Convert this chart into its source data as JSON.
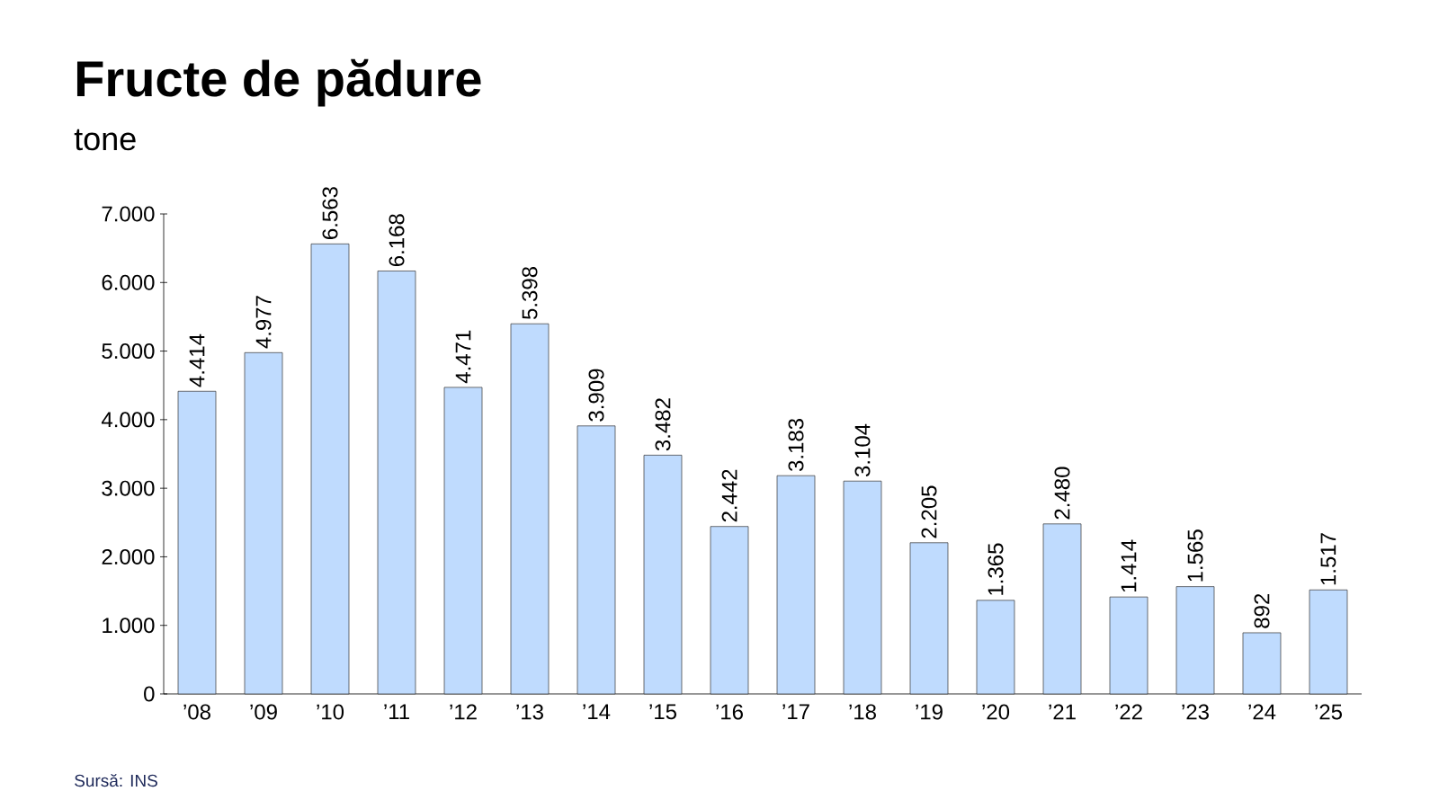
{
  "chart_data": {
    "type": "bar",
    "title": "Fructe de pădure",
    "subtitle": "tone",
    "annotations": [
      "Sursă: INS"
    ],
    "categories": [
      "’08",
      "’09",
      "’10",
      "’11",
      "’12",
      "’13",
      "’14",
      "’15",
      "’16",
      "’17",
      "’18",
      "’19",
      "’20",
      "’21",
      "’22",
      "’23",
      "’24",
      "’25"
    ],
    "values": [
      4414,
      4977,
      6563,
      6168,
      4471,
      5398,
      3909,
      3482,
      2442,
      3183,
      3104,
      2205,
      1365,
      2480,
      1414,
      1565,
      892,
      1517
    ],
    "value_labels": [
      "4.414",
      "4.977",
      "6.563",
      "6.168",
      "4.471",
      "5.398",
      "3.909",
      "3.482",
      "2.442",
      "3.183",
      "3.104",
      "2.205",
      "1.365",
      "2.480",
      "1.414",
      "1.565",
      "892",
      "1.517"
    ],
    "color": "#bfdbfe",
    "ylim": [
      0,
      7000
    ],
    "yticks": [
      {
        "value": 0,
        "label": "0"
      },
      {
        "value": 1000,
        "label": "1.000"
      },
      {
        "value": 2000,
        "label": "2.000"
      },
      {
        "value": 3000,
        "label": "3.000"
      },
      {
        "value": 4000,
        "label": "4.000"
      },
      {
        "value": 5000,
        "label": "5.000"
      },
      {
        "value": 6000,
        "label": "6.000"
      },
      {
        "value": 7000,
        "label": "7.000"
      }
    ]
  }
}
